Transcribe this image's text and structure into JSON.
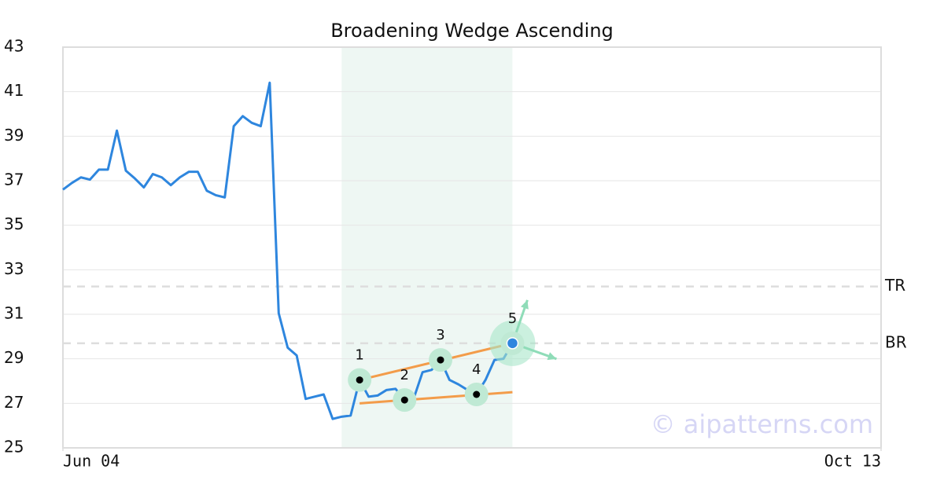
{
  "chart_data": {
    "type": "line",
    "title": "Broadening Wedge Ascending",
    "color": "#2e86de",
    "values": [
      36.6,
      36.9,
      37.15,
      37.05,
      37.5,
      37.5,
      39.25,
      37.45,
      37.1,
      36.7,
      37.3,
      37.15,
      36.8,
      37.15,
      37.4,
      37.4,
      36.55,
      36.35,
      36.25,
      39.45,
      39.9,
      39.6,
      39.45,
      41.4,
      31.05,
      29.5,
      29.15,
      27.2,
      27.3,
      27.4,
      26.3,
      26.4,
      26.45,
      28.05,
      27.3,
      27.35,
      27.6,
      27.65,
      27.15,
      27.2,
      28.4,
      28.5,
      28.95,
      28.05,
      27.85,
      27.6,
      27.4,
      28.05,
      28.95,
      29.0,
      29.7
    ],
    "xlim": [
      0,
      91
    ],
    "xticks": [
      {
        "value": 0,
        "label": "Jun 04"
      },
      {
        "value": 91,
        "label": "Oct 13"
      }
    ],
    "ylim": [
      25,
      43
    ],
    "yticks": [
      25,
      27,
      29,
      31,
      33,
      35,
      37,
      39,
      41,
      43
    ],
    "grid": true,
    "pattern": {
      "region": [
        31,
        50
      ],
      "points": [
        {
          "label": "1",
          "index": 33
        },
        {
          "label": "2",
          "index": 38
        },
        {
          "label": "3",
          "index": 42
        },
        {
          "label": "4",
          "index": 46
        },
        {
          "label": "5",
          "index": 50
        }
      ],
      "upper_line": {
        "x": [
          33,
          50
        ],
        "values": [
          28.05,
          29.7
        ],
        "color": "#f39c4a"
      },
      "lower_line": {
        "x": [
          33,
          50
        ],
        "values": [
          27.0,
          27.5
        ],
        "color": "#f39c4a"
      }
    },
    "levels": [
      {
        "label": "TR",
        "value": 32.25
      },
      {
        "label": "BR",
        "value": 29.7
      }
    ],
    "watermark": "© aipatterns.com"
  }
}
